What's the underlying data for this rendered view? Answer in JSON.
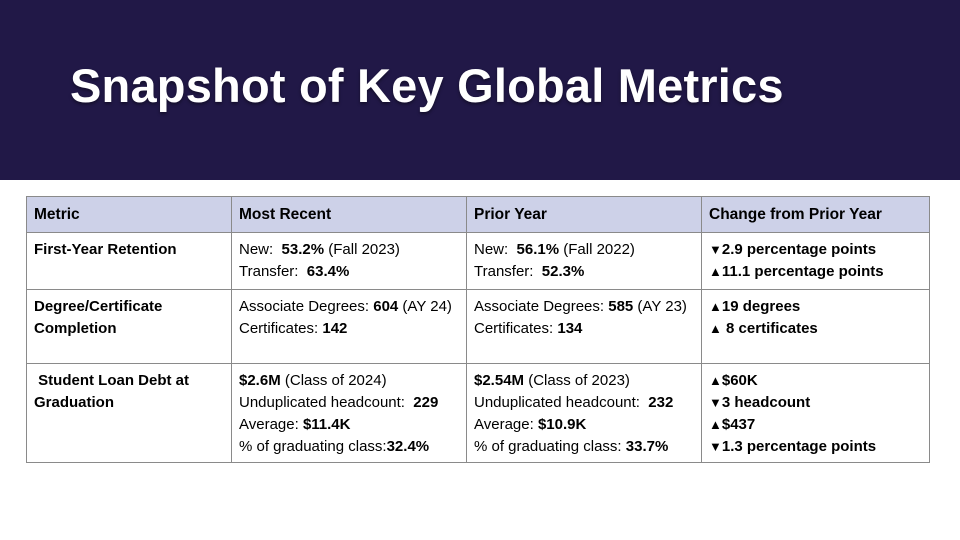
{
  "title": "Snapshot of Key Global Metrics",
  "colors": {
    "banner_bg": "#211847",
    "header_bg": "#cdd1e8",
    "border": "#8a8a8a",
    "title_color": "#ffffff",
    "text": "#000000"
  },
  "table": {
    "headers": [
      "Metric",
      "Most Recent",
      "Prior Year",
      "Change from Prior Year"
    ],
    "rows": [
      {
        "metric": "First-Year Retention",
        "most_recent": [
          {
            "pre": "New:  ",
            "value": "53.2%",
            "post": " (Fall 2023)"
          },
          {
            "pre": "Transfer:  ",
            "value": "63.4%",
            "post": ""
          }
        ],
        "prior_year": [
          {
            "pre": "New:  ",
            "value": "56.1%",
            "post": " (Fall 2022)"
          },
          {
            "pre": "Transfer:  ",
            "value": "52.3%",
            "post": ""
          }
        ],
        "change": [
          {
            "arrow": "▼",
            "text": "2.9 percentage points"
          },
          {
            "arrow": "▲",
            "text": "11.1 percentage points"
          }
        ]
      },
      {
        "metric": "Degree/Certificate Completion",
        "most_recent": [
          {
            "pre": "Associate Degrees: ",
            "value": "604",
            "post": " (AY 24)"
          },
          {
            "pre": "Certificates: ",
            "value": "142",
            "post": ""
          }
        ],
        "prior_year": [
          {
            "pre": "Associate Degrees: ",
            "value": "585",
            "post": " (AY 23)"
          },
          {
            "pre": "Certificates: ",
            "value": "134",
            "post": ""
          }
        ],
        "change": [
          {
            "arrow": "▲",
            "text": "19 degrees"
          },
          {
            "arrow": "▲",
            "text": " 8 certificates"
          }
        ]
      },
      {
        "metric": " Student Loan Debt at Graduation",
        "most_recent": [
          {
            "pre": "",
            "value": "$2.6M",
            "post": " (Class of 2024)"
          },
          {
            "pre": "Unduplicated headcount:  ",
            "value": "229",
            "post": ""
          },
          {
            "pre": "Average: ",
            "value": "$11.4K",
            "post": ""
          },
          {
            "pre": "% of graduating class:",
            "value": "32.4%",
            "post": ""
          }
        ],
        "prior_year": [
          {
            "pre": "",
            "value": "$2.54M",
            "post": " (Class of 2023)"
          },
          {
            "pre": "Unduplicated headcount:  ",
            "value": "232",
            "post": ""
          },
          {
            "pre": "Average: ",
            "value": "$10.9K",
            "post": ""
          },
          {
            "pre": "% of graduating class: ",
            "value": "33.7%",
            "post": ""
          }
        ],
        "change": [
          {
            "arrow": "▲",
            "text": "$60K"
          },
          {
            "arrow": "▼",
            "text": "3 headcount"
          },
          {
            "arrow": "▲",
            "text": "$437"
          },
          {
            "arrow": "▼",
            "text": "1.3 percentage points"
          }
        ]
      }
    ]
  }
}
